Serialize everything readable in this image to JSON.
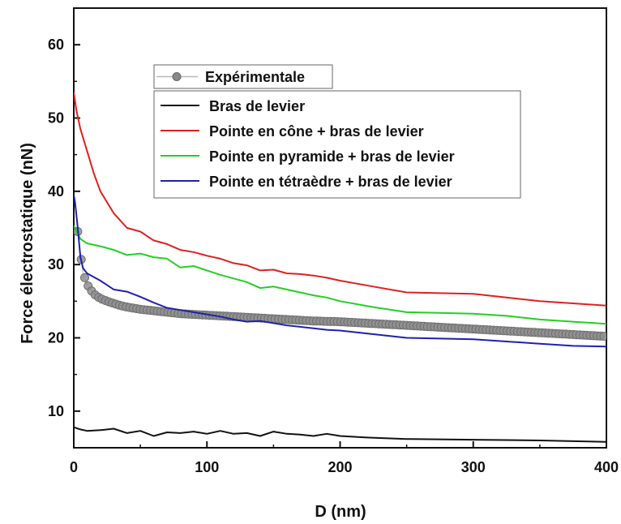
{
  "chart_data": {
    "type": "line",
    "xlabel": "D (nm)",
    "ylabel": "Force électrostatique (nN)",
    "xlim": [
      0,
      400
    ],
    "ylim": [
      5,
      65
    ],
    "xticks": [
      0,
      100,
      200,
      300,
      400
    ],
    "yticks": [
      10,
      20,
      30,
      40,
      50,
      60
    ],
    "grid": false,
    "legend_position": "top-center",
    "experimental": {
      "name": "Expérimentale",
      "color": "#888888",
      "x": [
        3,
        5,
        7,
        9,
        11,
        13,
        15,
        18,
        21,
        25,
        30,
        35,
        40,
        50,
        60,
        70,
        80,
        90,
        100,
        120,
        140,
        160,
        180,
        200,
        220,
        240,
        260,
        280,
        300,
        320,
        340,
        360,
        380,
        400
      ],
      "y": [
        34.5,
        31.5,
        28.8,
        27.8,
        27.0,
        26.5,
        26.0,
        25.6,
        25.3,
        25.0,
        24.7,
        24.4,
        24.2,
        23.9,
        23.7,
        23.5,
        23.3,
        23.2,
        23.1,
        22.9,
        22.7,
        22.5,
        22.3,
        22.2,
        22.0,
        21.8,
        21.6,
        21.4,
        21.2,
        21.0,
        20.8,
        20.6,
        20.4,
        20.2
      ]
    },
    "series": [
      {
        "name": "Bras de levier",
        "color": "#111111",
        "x": [
          0,
          5,
          10,
          20,
          30,
          40,
          50,
          60,
          70,
          80,
          90,
          100,
          110,
          120,
          130,
          140,
          150,
          160,
          170,
          180,
          190,
          200,
          220,
          250,
          300,
          350,
          400
        ],
        "y": [
          7.8,
          7.5,
          7.3,
          7.4,
          7.6,
          7.0,
          7.3,
          6.6,
          7.1,
          7.0,
          7.2,
          6.9,
          7.3,
          6.9,
          7.0,
          6.6,
          7.2,
          6.9,
          6.8,
          6.6,
          6.9,
          6.6,
          6.4,
          6.2,
          6.1,
          6.0,
          5.8
        ]
      },
      {
        "name": "Pointe en cône + bras de levier",
        "color": "#e02020",
        "x": [
          0,
          2,
          5,
          10,
          15,
          20,
          30,
          40,
          50,
          60,
          70,
          80,
          90,
          100,
          110,
          120,
          130,
          140,
          150,
          160,
          170,
          180,
          190,
          200,
          225,
          250,
          275,
          300,
          325,
          350,
          375,
          400
        ],
        "y": [
          53.5,
          51.0,
          48.5,
          45.5,
          42.5,
          40.0,
          37.0,
          35.0,
          34.5,
          33.3,
          32.8,
          32.0,
          31.7,
          31.2,
          30.8,
          30.2,
          29.9,
          29.2,
          29.3,
          28.8,
          28.7,
          28.5,
          28.2,
          27.8,
          27.0,
          26.2,
          26.1,
          26.0,
          25.5,
          25.0,
          24.7,
          24.4
        ]
      },
      {
        "name": "Pointe en pyramide + bras de levier",
        "color": "#22d022",
        "x": [
          0,
          5,
          10,
          20,
          30,
          40,
          50,
          60,
          70,
          80,
          90,
          100,
          110,
          120,
          130,
          140,
          150,
          160,
          170,
          180,
          190,
          200,
          225,
          250,
          275,
          300,
          325,
          350,
          375,
          400
        ],
        "y": [
          35.3,
          33.5,
          32.9,
          32.5,
          32.0,
          31.3,
          31.5,
          31.0,
          30.8,
          29.6,
          29.8,
          29.2,
          28.6,
          28.1,
          27.6,
          26.8,
          27.0,
          26.6,
          26.2,
          25.8,
          25.5,
          25.0,
          24.2,
          23.5,
          23.4,
          23.3,
          23.0,
          22.5,
          22.2,
          21.9
        ]
      },
      {
        "name": "Pointe en tétraèdre + bras de levier",
        "color": "#2020b0",
        "x": [
          0,
          1,
          3,
          5,
          7,
          10,
          20,
          30,
          40,
          50,
          60,
          70,
          80,
          90,
          100,
          110,
          120,
          130,
          140,
          150,
          160,
          170,
          180,
          190,
          200,
          225,
          250,
          275,
          300,
          325,
          350,
          375,
          400
        ],
        "y": [
          39.5,
          38.5,
          35.0,
          31.0,
          29.5,
          28.8,
          27.8,
          26.6,
          26.3,
          25.6,
          24.8,
          24.1,
          23.8,
          23.5,
          23.2,
          22.9,
          22.5,
          22.2,
          22.3,
          22.0,
          21.7,
          21.5,
          21.3,
          21.1,
          21.0,
          20.5,
          20.0,
          19.9,
          19.8,
          19.5,
          19.2,
          18.9,
          18.8
        ]
      }
    ]
  }
}
